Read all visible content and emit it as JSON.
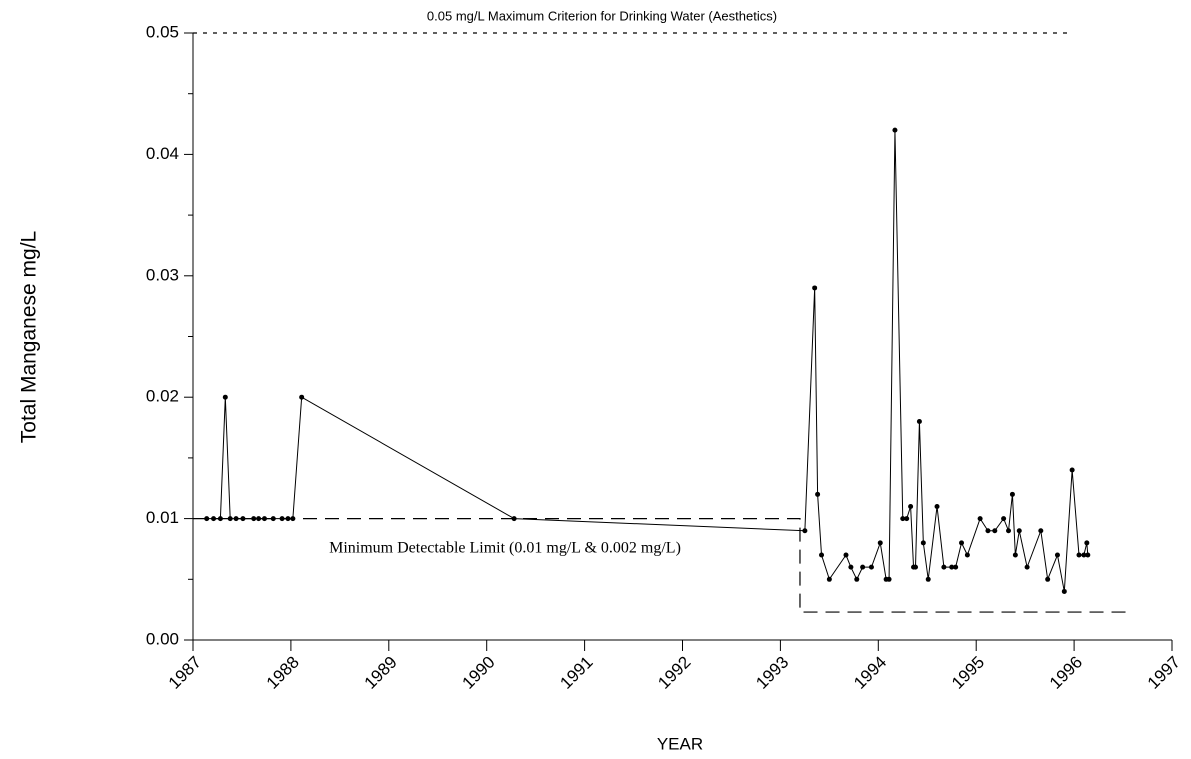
{
  "chart_data": {
    "type": "line",
    "y_label": "Total Manganese mg/L",
    "x_label": "YEAR",
    "color": "#000000",
    "xlim": [
      1987,
      1997
    ],
    "xticks": [
      1987,
      1988,
      1989,
      1990,
      1991,
      1992,
      1993,
      1994,
      1995,
      1996,
      1997
    ],
    "ylim": [
      0,
      0.05
    ],
    "yticks": [
      {
        "value": 0,
        "label": "0.00"
      },
      0.01,
      0.02,
      0.03,
      0.04,
      0.05
    ],
    "yminorticks": [
      0.005,
      0.015,
      0.025,
      0.035,
      0.045
    ],
    "x": [
      1987.14,
      1987.21,
      1987.28,
      1987.33,
      1987.38,
      1987.44,
      1987.51,
      1987.62,
      1987.67,
      1987.73,
      1987.82,
      1987.91,
      1987.97,
      1988.02,
      1988.11,
      1990.28,
      1993.25,
      1993.35,
      1993.38,
      1993.42,
      1993.5,
      1993.67,
      1993.72,
      1993.78,
      1993.84,
      1993.93,
      1994.02,
      1994.08,
      1994.11,
      1994.17,
      1994.25,
      1994.29,
      1994.33,
      1994.36,
      1994.38,
      1994.42,
      1994.46,
      1994.51,
      1994.6,
      1994.67,
      1994.75,
      1994.79,
      1994.85,
      1994.91,
      1995.04,
      1995.12,
      1995.19,
      1995.28,
      1995.33,
      1995.37,
      1995.4,
      1995.44,
      1995.52,
      1995.66,
      1995.73,
      1995.83,
      1995.9,
      1995.98,
      1996.05,
      1996.1,
      1996.13,
      1996.14
    ],
    "values": [
      0.01,
      0.01,
      0.01,
      0.02,
      0.01,
      0.01,
      0.01,
      0.01,
      0.01,
      0.01,
      0.01,
      0.01,
      0.01,
      0.01,
      0.02,
      0.01,
      0.009,
      0.029,
      0.012,
      0.007,
      0.005,
      0.007,
      0.006,
      0.005,
      0.006,
      0.006,
      0.008,
      0.005,
      0.005,
      0.042,
      0.01,
      0.01,
      0.011,
      0.006,
      0.006,
      0.018,
      0.008,
      0.005,
      0.011,
      0.006,
      0.006,
      0.006,
      0.008,
      0.007,
      0.01,
      0.009,
      0.009,
      0.01,
      0.009,
      0.012,
      0.007,
      0.009,
      0.006,
      0.009,
      0.005,
      0.007,
      0.004,
      0.014,
      0.007,
      0.007,
      0.008,
      0.007
    ],
    "reference_lines": [
      {
        "label": "0.05 mg/L Maximum Criterion for Drinking Water (Aesthetics)",
        "x": [
          1987,
          1995.96
        ],
        "values": [
          0.05,
          0.05
        ]
      },
      {
        "label": "Minimum Detectable Limit (0.01 mg/L & 0.002 mg/L)",
        "x": [
          1987,
          1993.2,
          1993.2,
          1996.55
        ],
        "values": [
          0.01,
          0.01,
          0.0023,
          0.0023
        ]
      }
    ]
  }
}
